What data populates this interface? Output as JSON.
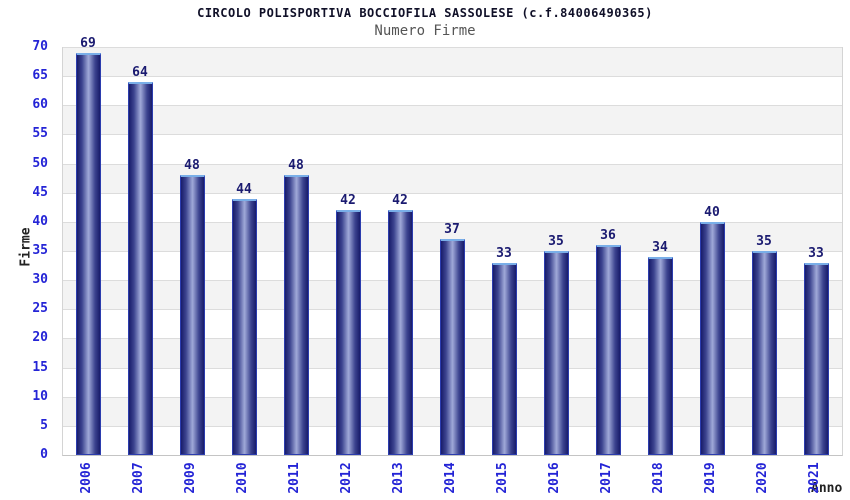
{
  "chart_data": {
    "type": "bar",
    "title": "CIRCOLO POLISPORTIVA BOCCIOFILA SASSOLESE (c.f.84006490365)",
    "subtitle": "Numero Firme",
    "xlabel": "Anno",
    "ylabel": "Firme",
    "categories": [
      "2006",
      "2007",
      "2009",
      "2010",
      "2011",
      "2012",
      "2013",
      "2014",
      "2015",
      "2016",
      "2017",
      "2018",
      "2019",
      "2020",
      "2021"
    ],
    "values": [
      69,
      64,
      48,
      44,
      48,
      42,
      42,
      37,
      33,
      35,
      36,
      34,
      40,
      35,
      33
    ],
    "ylim": [
      0,
      70
    ],
    "ytick_step": 5,
    "grid": true,
    "legend": "none",
    "colors": {
      "title": "#101028",
      "subtitle": "#555555",
      "axis_label": "#222222",
      "tick_label": "#2424d6",
      "value_label": "#1a1a70",
      "bar_border": "#2b3cae",
      "bar_top_edge": "#79aee8",
      "bar_dark": "#181c6a",
      "bar_mid": "#3d4590",
      "bar_light": "#a0a9d8",
      "band_gray": "#f3f3f3",
      "band_white": "#ffffff",
      "gridline": "#dcdcdc"
    }
  }
}
